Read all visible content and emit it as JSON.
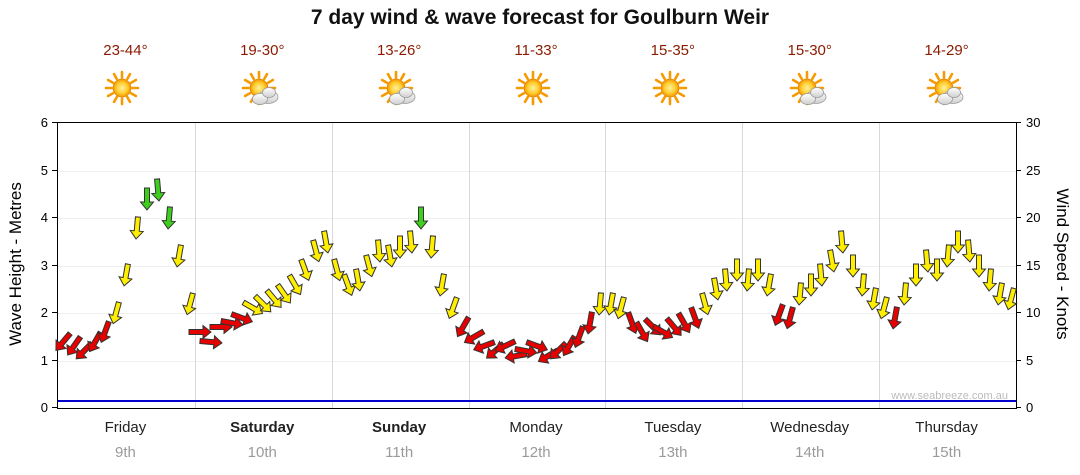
{
  "title": "7 day wind & wave forecast for Goulburn Weir",
  "watermark": "www.seabreeze.com.au",
  "temp_text_color": "#8b1a00",
  "chart_data": {
    "type": "wind-arrows",
    "title": "7 day wind & wave forecast for Goulburn Weir",
    "left_axis": {
      "title": "Wave Height - Metres",
      "min": 0,
      "max": 6,
      "tick_step": 1
    },
    "right_axis": {
      "title": "Wind Speed - Knots",
      "min": 0,
      "max": 30,
      "tick_step": 5
    },
    "grid": "day-columns",
    "days": [
      {
        "name": "Friday",
        "date": "9th",
        "temp": "23-44°",
        "icon": "sun",
        "bold": false
      },
      {
        "name": "Saturday",
        "date": "10th",
        "temp": "19-30°",
        "icon": "sun-cloud",
        "bold": true
      },
      {
        "name": "Sunday",
        "date": "11th",
        "temp": "13-26°",
        "icon": "sun-cloud",
        "bold": true
      },
      {
        "name": "Monday",
        "date": "12th",
        "temp": "11-33°",
        "icon": "sun",
        "bold": false
      },
      {
        "name": "Tuesday",
        "date": "13th",
        "temp": "15-35°",
        "icon": "sun",
        "bold": false
      },
      {
        "name": "Wednesday",
        "date": "14th",
        "temp": "15-30°",
        "icon": "sun-cloud",
        "bold": false
      },
      {
        "name": "Thursday",
        "date": "15th",
        "temp": "14-29°",
        "icon": "sun-cloud",
        "bold": false
      }
    ],
    "wind_speed_colors": {
      "light": "#e60000",
      "moderate": "#ffee00",
      "strong": "#3ecf1e"
    },
    "color_thresholds_knots": {
      "moderate_min": 10,
      "strong_min": 19.5
    },
    "points_per_day": 13,
    "wind_points_knots_rotation": [
      [
        7,
        40
      ],
      [
        6.5,
        35
      ],
      [
        6,
        45
      ],
      [
        7,
        30
      ],
      [
        8,
        20
      ],
      [
        10,
        15
      ],
      [
        14,
        10
      ],
      [
        19,
        5
      ],
      [
        22,
        0
      ],
      [
        23,
        -5
      ],
      [
        20,
        5
      ],
      [
        16,
        10
      ],
      [
        11,
        15
      ],
      [
        8,
        -90
      ],
      [
        7,
        -85
      ],
      [
        8.5,
        -90
      ],
      [
        9,
        -80
      ],
      [
        9.5,
        -70
      ],
      [
        10.5,
        -60
      ],
      [
        11,
        -45
      ],
      [
        11.5,
        -40
      ],
      [
        12,
        -35
      ],
      [
        13,
        -30
      ],
      [
        14.5,
        -20
      ],
      [
        16.5,
        -15
      ],
      [
        17.5,
        -10
      ],
      [
        14.5,
        -15
      ],
      [
        13,
        -20
      ],
      [
        13.5,
        -10
      ],
      [
        15,
        -15
      ],
      [
        16.5,
        -5
      ],
      [
        16,
        -10
      ],
      [
        17,
        0
      ],
      [
        17.5,
        -5
      ],
      [
        20,
        0
      ],
      [
        17,
        5
      ],
      [
        13,
        10
      ],
      [
        10.5,
        20
      ],
      [
        8.5,
        30
      ],
      [
        7.5,
        60
      ],
      [
        6.5,
        70
      ],
      [
        6,
        50
      ],
      [
        6.5,
        65
      ],
      [
        5.5,
        80
      ],
      [
        6,
        -80
      ],
      [
        6.5,
        -70
      ],
      [
        5.5,
        60
      ],
      [
        6,
        45
      ],
      [
        6.5,
        30
      ],
      [
        7.5,
        20
      ],
      [
        9,
        10
      ],
      [
        11,
        5
      ],
      [
        11,
        10
      ],
      [
        10.5,
        15
      ],
      [
        9,
        -20
      ],
      [
        8,
        -30
      ],
      [
        8.5,
        -45
      ],
      [
        8,
        -60
      ],
      [
        8.5,
        -40
      ],
      [
        9,
        -30
      ],
      [
        9.5,
        -20
      ],
      [
        11,
        -15
      ],
      [
        12.5,
        -10
      ],
      [
        13.5,
        -5
      ],
      [
        14.5,
        0
      ],
      [
        13.5,
        5
      ],
      [
        14.5,
        0
      ],
      [
        13,
        10
      ],
      [
        9.8,
        20
      ],
      [
        9.5,
        15
      ],
      [
        12,
        5
      ],
      [
        13,
        0
      ],
      [
        14,
        -5
      ],
      [
        15.5,
        -10
      ],
      [
        17.5,
        -5
      ],
      [
        15,
        0
      ],
      [
        13,
        5
      ],
      [
        11.5,
        10
      ],
      [
        10.5,
        15
      ],
      [
        9.5,
        10
      ],
      [
        12,
        5
      ],
      [
        14,
        0
      ],
      [
        15.5,
        -5
      ],
      [
        14.5,
        0
      ],
      [
        16,
        5
      ],
      [
        17.5,
        0
      ],
      [
        16.5,
        -5
      ],
      [
        15,
        0
      ],
      [
        13.5,
        5
      ],
      [
        12,
        10
      ],
      [
        11.5,
        15
      ]
    ],
    "wave_height_series_m": 0.12,
    "wave_line_color": "#0000cc"
  }
}
